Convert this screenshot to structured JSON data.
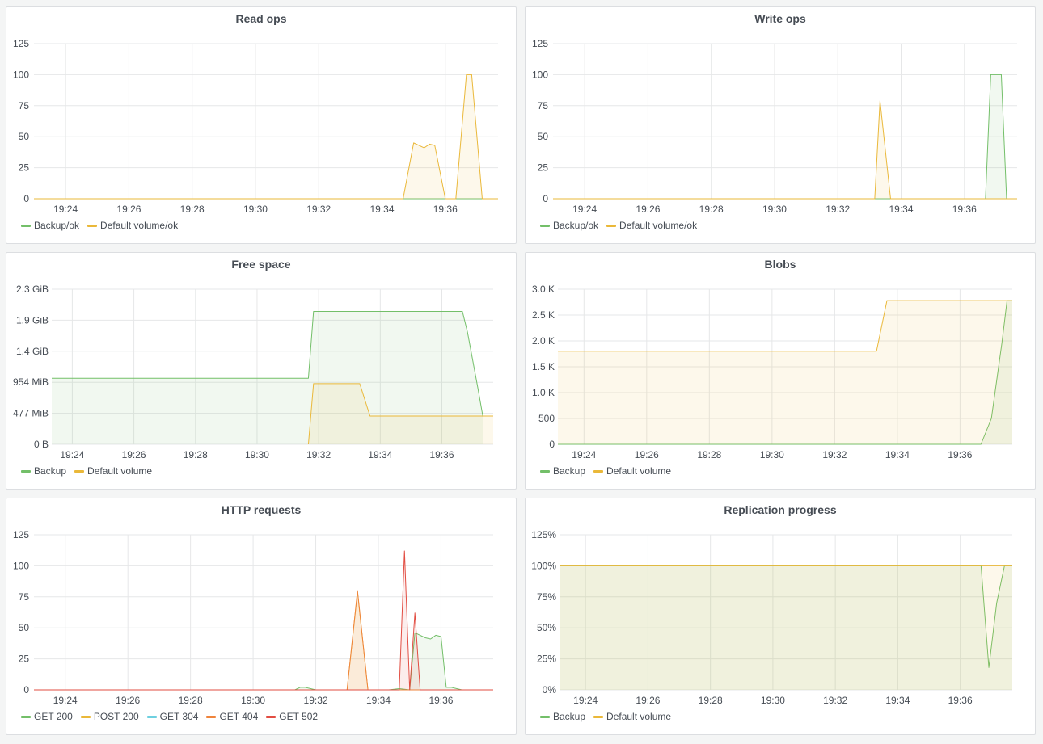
{
  "panels": {
    "read_ops": {
      "title": "Read ops",
      "legend": [
        {
          "label": "Backup/ok",
          "color": "#73bf69"
        },
        {
          "label": "Default volume/ok",
          "color": "#eab839"
        }
      ]
    },
    "write_ops": {
      "title": "Write ops",
      "legend": [
        {
          "label": "Backup/ok",
          "color": "#73bf69"
        },
        {
          "label": "Default volume/ok",
          "color": "#eab839"
        }
      ]
    },
    "free_space": {
      "title": "Free space",
      "legend": [
        {
          "label": "Backup",
          "color": "#73bf69"
        },
        {
          "label": "Default volume",
          "color": "#eab839"
        }
      ]
    },
    "blobs": {
      "title": "Blobs",
      "legend": [
        {
          "label": "Backup",
          "color": "#73bf69"
        },
        {
          "label": "Default volume",
          "color": "#eab839"
        }
      ]
    },
    "http_requests": {
      "title": "HTTP requests",
      "legend": [
        {
          "label": "GET 200",
          "color": "#73bf69"
        },
        {
          "label": "POST 200",
          "color": "#eab839"
        },
        {
          "label": "GET 304",
          "color": "#6ed0e0"
        },
        {
          "label": "GET 404",
          "color": "#ef843c"
        },
        {
          "label": "GET 502",
          "color": "#e24d42"
        }
      ]
    },
    "replication_progress": {
      "title": "Replication progress",
      "legend": [
        {
          "label": "Backup",
          "color": "#73bf69"
        },
        {
          "label": "Default volume",
          "color": "#eab839"
        }
      ]
    }
  },
  "chart_data": [
    {
      "id": "read_ops",
      "type": "area",
      "title": "Read ops",
      "xlabel": "",
      "ylabel": "",
      "x_range": [
        "19:23",
        "19:37:40"
      ],
      "ylim": [
        0,
        125
      ],
      "x_ticks": [
        "19:24",
        "19:26",
        "19:28",
        "19:30",
        "19:32",
        "19:34",
        "19:36"
      ],
      "y_ticks": [
        "0",
        "25",
        "50",
        "75",
        "100",
        "125"
      ],
      "grid": true,
      "legend_position": "bottom-left",
      "series": [
        {
          "name": "Backup/ok",
          "color": "#73bf69",
          "points": [
            [
              "19:23",
              0
            ],
            [
              "19:37:40",
              0
            ]
          ]
        },
        {
          "name": "Default volume/ok",
          "color": "#eab839",
          "points": [
            [
              "19:23",
              0
            ],
            [
              "19:34:40",
              0
            ],
            [
              "19:35:00",
              45
            ],
            [
              "19:35:20",
              41
            ],
            [
              "19:35:30",
              44
            ],
            [
              "19:35:40",
              43
            ],
            [
              "19:36:00",
              0
            ],
            [
              "19:36:20",
              0
            ],
            [
              "19:36:40",
              100
            ],
            [
              "19:36:50",
              100
            ],
            [
              "19:37:10",
              0
            ],
            [
              "19:37:40",
              0
            ]
          ]
        }
      ]
    },
    {
      "id": "write_ops",
      "type": "area",
      "title": "Write ops",
      "xlabel": "",
      "ylabel": "",
      "x_range": [
        "19:23",
        "19:37:40"
      ],
      "ylim": [
        0,
        125
      ],
      "x_ticks": [
        "19:24",
        "19:26",
        "19:28",
        "19:30",
        "19:32",
        "19:34",
        "19:36"
      ],
      "y_ticks": [
        "0",
        "25",
        "50",
        "75",
        "100",
        "125"
      ],
      "grid": true,
      "legend_position": "bottom-left",
      "series": [
        {
          "name": "Backup/ok",
          "color": "#73bf69",
          "points": [
            [
              "19:23",
              0
            ],
            [
              "19:36:40",
              0
            ],
            [
              "19:36:50",
              100
            ],
            [
              "19:37:10",
              100
            ],
            [
              "19:37:20",
              0
            ],
            [
              "19:37:40",
              0
            ]
          ]
        },
        {
          "name": "Default volume/ok",
          "color": "#eab839",
          "points": [
            [
              "19:23",
              0
            ],
            [
              "19:33:10",
              0
            ],
            [
              "19:33:20",
              79
            ],
            [
              "19:33:40",
              0
            ],
            [
              "19:37:40",
              0
            ]
          ]
        }
      ]
    },
    {
      "id": "free_space",
      "type": "area",
      "title": "Free space",
      "xlabel": "",
      "ylabel": "",
      "x_range": [
        "19:23:20",
        "19:37:40"
      ],
      "ylim": [
        0,
        2.3
      ],
      "y_unit": "GiB",
      "x_ticks": [
        "19:24",
        "19:26",
        "19:28",
        "19:30",
        "19:32",
        "19:34",
        "19:36"
      ],
      "y_ticks": [
        "0 B",
        "477 MiB",
        "954 MiB",
        "1.4 GiB",
        "1.9 GiB",
        "2.3 GiB"
      ],
      "grid": true,
      "legend_position": "bottom-left",
      "series": [
        {
          "name": "Backup",
          "color": "#73bf69",
          "points": [
            [
              "19:23:20",
              0.98
            ],
            [
              "19:31:40",
              0.98
            ],
            [
              "19:31:50",
              1.97
            ],
            [
              "19:36:40",
              1.97
            ],
            [
              "19:36:50",
              1.66
            ],
            [
              "19:37:10",
              0.84
            ],
            [
              "19:37:20",
              0.41
            ]
          ]
        },
        {
          "name": "Default volume",
          "color": "#eab839",
          "points": [
            [
              "19:31:40",
              0
            ],
            [
              "19:31:50",
              0.9
            ],
            [
              "19:33:20",
              0.9
            ],
            [
              "19:33:40",
              0.42
            ],
            [
              "19:37:40",
              0.42
            ]
          ]
        }
      ]
    },
    {
      "id": "blobs",
      "type": "area",
      "title": "Blobs",
      "xlabel": "",
      "ylabel": "",
      "x_range": [
        "19:23:10",
        "19:37:40"
      ],
      "ylim": [
        0,
        3000
      ],
      "x_ticks": [
        "19:24",
        "19:26",
        "19:28",
        "19:30",
        "19:32",
        "19:34",
        "19:36"
      ],
      "y_ticks": [
        "0",
        "500",
        "1.0 K",
        "1.5 K",
        "2.0 K",
        "2.5 K",
        "3.0 K"
      ],
      "grid": true,
      "legend_position": "bottom-left",
      "series": [
        {
          "name": "Backup",
          "color": "#73bf69",
          "points": [
            [
              "19:23:10",
              0
            ],
            [
              "19:36:40",
              0
            ],
            [
              "19:37:00",
              500
            ],
            [
              "19:37:20",
              1950
            ],
            [
              "19:37:30",
              2780
            ],
            [
              "19:37:40",
              2780
            ]
          ]
        },
        {
          "name": "Default volume",
          "color": "#eab839",
          "points": [
            [
              "19:23:10",
              1800
            ],
            [
              "19:33:20",
              1800
            ],
            [
              "19:33:40",
              2780
            ],
            [
              "19:37:40",
              2780
            ]
          ]
        }
      ]
    },
    {
      "id": "http_requests",
      "type": "area",
      "title": "HTTP requests",
      "xlabel": "",
      "ylabel": "",
      "x_range": [
        "19:23",
        "19:37:40"
      ],
      "ylim": [
        0,
        125
      ],
      "x_ticks": [
        "19:24",
        "19:26",
        "19:28",
        "19:30",
        "19:32",
        "19:34",
        "19:36"
      ],
      "y_ticks": [
        "0",
        "25",
        "50",
        "75",
        "100",
        "125"
      ],
      "grid": true,
      "legend_position": "bottom-left",
      "series": [
        {
          "name": "GET 200",
          "color": "#73bf69",
          "points": [
            [
              "19:23",
              0
            ],
            [
              "19:31:20",
              0
            ],
            [
              "19:31:30",
              2
            ],
            [
              "19:31:40",
              2
            ],
            [
              "19:32:00",
              0
            ],
            [
              "19:34:20",
              0
            ],
            [
              "19:34:40",
              1
            ],
            [
              "19:35:00",
              0
            ],
            [
              "19:35:10",
              46
            ],
            [
              "19:35:30",
              42
            ],
            [
              "19:35:40",
              41
            ],
            [
              "19:35:50",
              44
            ],
            [
              "19:36:00",
              43
            ],
            [
              "19:36:10",
              2
            ],
            [
              "19:36:20",
              2
            ],
            [
              "19:36:40",
              0
            ],
            [
              "19:37:40",
              0
            ]
          ]
        },
        {
          "name": "POST 200",
          "color": "#eab839",
          "points": [
            [
              "19:23",
              0
            ],
            [
              "19:33:00",
              0
            ],
            [
              "19:33:20",
              79
            ],
            [
              "19:33:40",
              0
            ],
            [
              "19:37:40",
              0
            ]
          ]
        },
        {
          "name": "GET 304",
          "color": "#6ed0e0",
          "points": [
            [
              "19:23",
              0
            ],
            [
              "19:37:40",
              0
            ]
          ]
        },
        {
          "name": "GET 404",
          "color": "#ef843c",
          "points": [
            [
              "19:23",
              0
            ],
            [
              "19:33:00",
              0
            ],
            [
              "19:33:20",
              80
            ],
            [
              "19:33:40",
              0
            ],
            [
              "19:37:40",
              0
            ]
          ]
        },
        {
          "name": "GET 502",
          "color": "#e24d42",
          "points": [
            [
              "19:23",
              0
            ],
            [
              "19:34:40",
              0
            ],
            [
              "19:34:50",
              112
            ],
            [
              "19:35:00",
              0
            ],
            [
              "19:35:10",
              62
            ],
            [
              "19:35:20",
              0
            ],
            [
              "19:37:40",
              0
            ]
          ]
        }
      ]
    },
    {
      "id": "replication_progress",
      "type": "area",
      "title": "Replication progress",
      "xlabel": "",
      "ylabel": "",
      "x_range": [
        "19:23:10",
        "19:37:40"
      ],
      "ylim": [
        0,
        125
      ],
      "y_unit": "%",
      "x_ticks": [
        "19:24",
        "19:26",
        "19:28",
        "19:30",
        "19:32",
        "19:34",
        "19:36"
      ],
      "y_ticks": [
        "0%",
        "25%",
        "50%",
        "75%",
        "100%",
        "125%"
      ],
      "grid": true,
      "legend_position": "bottom-left",
      "series": [
        {
          "name": "Backup",
          "color": "#73bf69",
          "points": [
            [
              "19:23:10",
              100
            ],
            [
              "19:36:40",
              100
            ],
            [
              "19:36:55",
              18
            ],
            [
              "19:37:10",
              70
            ],
            [
              "19:37:25",
              100
            ],
            [
              "19:37:40",
              100
            ]
          ]
        },
        {
          "name": "Default volume",
          "color": "#eab839",
          "points": [
            [
              "19:23:10",
              100
            ],
            [
              "19:37:40",
              100
            ]
          ]
        }
      ]
    }
  ]
}
